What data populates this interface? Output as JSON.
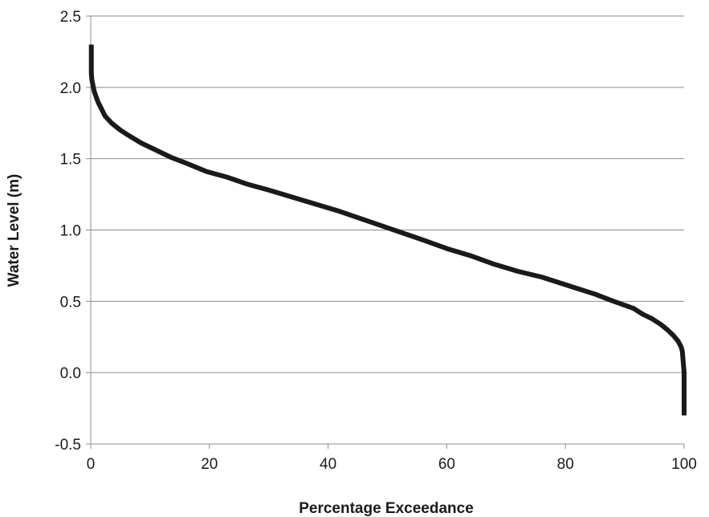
{
  "chart_data": {
    "type": "line",
    "title": "",
    "xlabel": "Percentage Exceedance",
    "ylabel": "Water Level (m)",
    "xlim": [
      0,
      100
    ],
    "ylim": [
      -0.5,
      2.5
    ],
    "x_ticks": [
      0,
      20,
      40,
      60,
      80,
      100
    ],
    "y_ticks": [
      -0.5,
      0.0,
      0.5,
      1.0,
      1.5,
      2.0,
      2.5
    ],
    "x_tick_labels": [
      "0",
      "20",
      "40",
      "60",
      "80",
      "100"
    ],
    "y_tick_labels": [
      "-0.5",
      "0.0",
      "0.5",
      "1.0",
      "1.5",
      "2.0",
      "2.5"
    ],
    "grid": "horizontal",
    "line_color": "#1a1a1a",
    "series": [
      {
        "x": [
          0.1,
          0.1,
          0.2,
          0.6,
          1.2,
          2.4,
          3.5,
          5.0,
          6.5,
          8.5,
          11.0,
          13.5,
          16.0,
          19.5,
          23.0,
          26.5,
          30.0,
          34.0,
          38.0,
          42.0,
          45.5,
          49.0,
          52.5,
          56.0,
          60.0,
          64.0,
          68.0,
          72.0,
          76.0,
          79.0,
          82.0,
          85.0,
          87.5,
          89.5,
          91.5,
          93.0,
          94.5,
          96.0,
          97.2,
          98.2,
          99.0,
          99.5,
          99.7,
          99.8,
          99.9,
          100.0,
          100.0,
          100.0
        ],
        "y": [
          2.3,
          2.1,
          2.05,
          1.97,
          1.9,
          1.8,
          1.75,
          1.7,
          1.66,
          1.61,
          1.56,
          1.51,
          1.47,
          1.41,
          1.37,
          1.32,
          1.28,
          1.23,
          1.18,
          1.13,
          1.08,
          1.03,
          0.98,
          0.93,
          0.87,
          0.82,
          0.76,
          0.71,
          0.67,
          0.63,
          0.59,
          0.55,
          0.51,
          0.48,
          0.45,
          0.41,
          0.38,
          0.34,
          0.3,
          0.26,
          0.22,
          0.18,
          0.15,
          0.1,
          0.05,
          0.0,
          -0.15,
          -0.3
        ]
      }
    ]
  }
}
